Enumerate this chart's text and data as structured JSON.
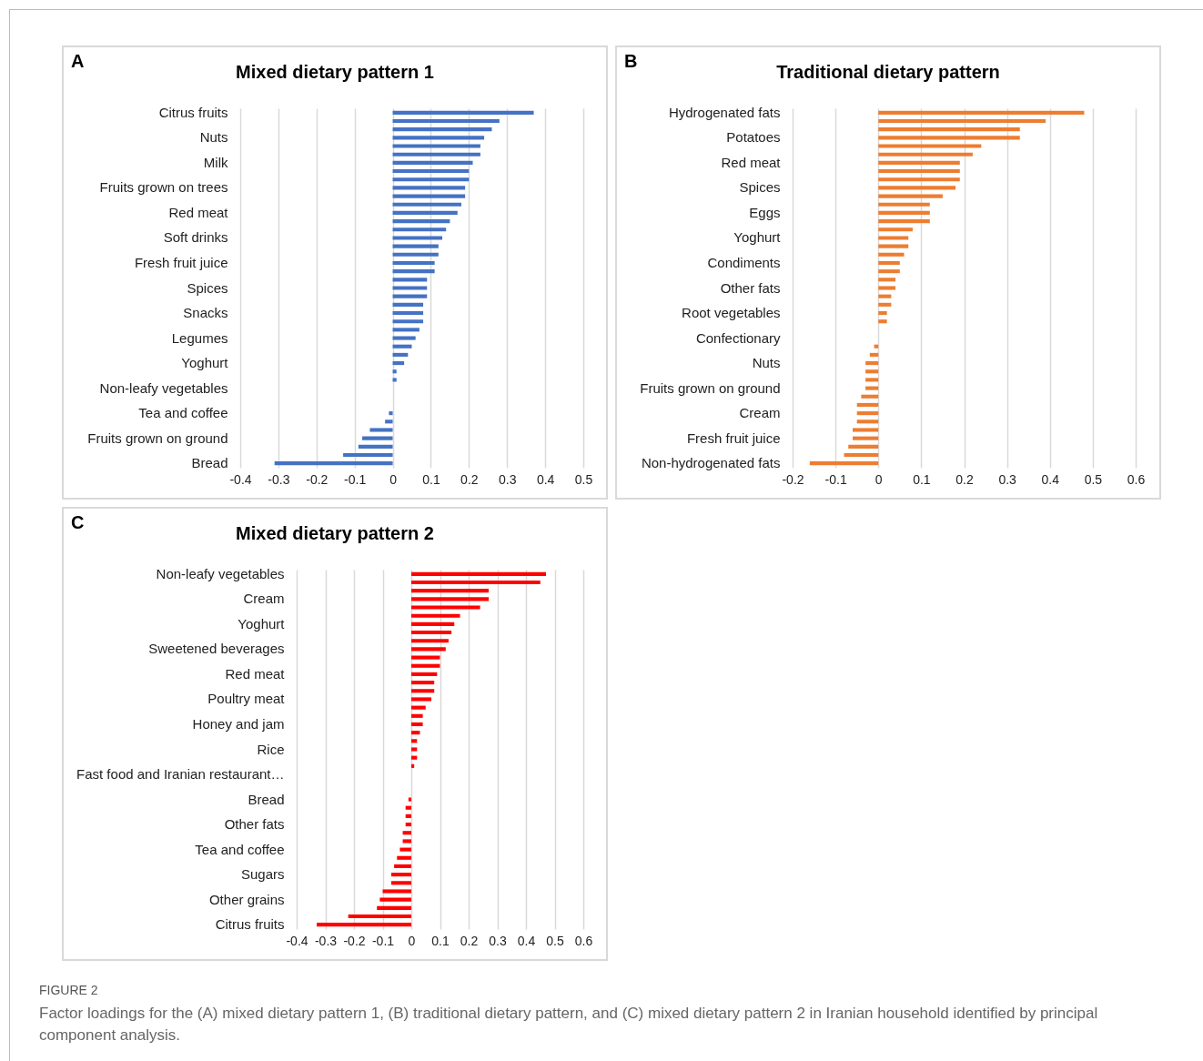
{
  "chart_data": [
    {
      "type": "bar",
      "orientation": "horizontal",
      "title": "Mixed dietary pattern 1",
      "annotations": [
        "A",
        "FIGURE 2",
        "Factor loadings for the (A) mixed dietary pattern 1, (B) traditional dietary pattern, and (C) mixed dietary pattern 2 in Iranian household identified by principal component analysis."
      ],
      "categories": [
        "Citrus fruits",
        null,
        null,
        "Nuts",
        null,
        null,
        "Milk",
        null,
        null,
        "Fruits grown on trees",
        null,
        null,
        "Red meat",
        null,
        null,
        "Soft drinks",
        null,
        null,
        "Fresh fruit juice",
        null,
        null,
        "Spices",
        null,
        null,
        "Snacks",
        null,
        null,
        "Legumes",
        null,
        null,
        "Yoghurt",
        null,
        null,
        "Non-leafy vegetables",
        null,
        null,
        "Tea and coffee",
        null,
        null,
        "Fruits grown on ground",
        null,
        null,
        "Bread"
      ],
      "values": [
        0.37,
        0.28,
        0.26,
        0.24,
        0.23,
        0.23,
        0.21,
        0.2,
        0.2,
        0.19,
        0.19,
        0.18,
        0.17,
        0.15,
        0.14,
        0.13,
        0.12,
        0.12,
        0.11,
        0.11,
        0.09,
        0.09,
        0.09,
        0.08,
        0.08,
        0.08,
        0.07,
        0.06,
        0.05,
        0.04,
        0.03,
        0.01,
        0.01,
        0,
        0,
        0,
        -0.01,
        -0.02,
        -0.06,
        -0.08,
        -0.09,
        -0.13,
        -0.31
      ],
      "color": "#4472c4",
      "xlim": [
        -0.4,
        0.5
      ],
      "xticks": [
        -0.4,
        -0.3,
        -0.2,
        -0.1,
        0,
        0.1,
        0.2,
        0.3,
        0.4,
        0.5
      ],
      "grid": "x"
    },
    {
      "type": "bar",
      "orientation": "horizontal",
      "title": "Traditional dietary pattern",
      "annotations": [
        "B"
      ],
      "categories": [
        "Hydrogenated fats",
        null,
        null,
        "Potatoes",
        null,
        null,
        "Red meat",
        null,
        null,
        "Spices",
        null,
        null,
        "Eggs",
        null,
        null,
        "Yoghurt",
        null,
        null,
        "Condiments",
        null,
        null,
        "Other fats",
        null,
        null,
        "Root vegetables",
        null,
        null,
        "Confectionary",
        null,
        null,
        "Nuts",
        null,
        null,
        "Fruits grown on ground",
        null,
        null,
        "Cream",
        null,
        null,
        "Fresh fruit juice",
        null,
        null,
        "Non-hydrogenated fats"
      ],
      "values": [
        0.48,
        0.39,
        0.33,
        0.33,
        0.24,
        0.22,
        0.19,
        0.19,
        0.19,
        0.18,
        0.15,
        0.12,
        0.12,
        0.12,
        0.08,
        0.07,
        0.07,
        0.06,
        0.05,
        0.05,
        0.04,
        0.04,
        0.03,
        0.03,
        0.02,
        0.02,
        0,
        0,
        -0.01,
        -0.02,
        -0.03,
        -0.03,
        -0.03,
        -0.03,
        -0.04,
        -0.05,
        -0.05,
        -0.05,
        -0.06,
        -0.06,
        -0.07,
        -0.08,
        -0.16
      ],
      "color": "#ed7d31",
      "xlim": [
        -0.2,
        0.6
      ],
      "xticks": [
        -0.2,
        -0.1,
        0,
        0.1,
        0.2,
        0.3,
        0.4,
        0.5,
        0.6
      ],
      "grid": "x"
    },
    {
      "type": "bar",
      "orientation": "horizontal",
      "title": "Mixed dietary pattern 2",
      "annotations": [
        "C"
      ],
      "categories": [
        "Non-leafy vegetables",
        null,
        null,
        "Cream",
        null,
        null,
        "Yoghurt",
        null,
        null,
        "Sweetened beverages",
        null,
        null,
        "Red meat",
        null,
        null,
        "Poultry meat",
        null,
        null,
        "Honey and jam",
        null,
        null,
        "Rice",
        null,
        null,
        "Fast food and Iranian restaurant…",
        null,
        null,
        "Bread",
        null,
        null,
        "Other fats",
        null,
        null,
        "Tea and coffee",
        null,
        null,
        "Sugars",
        null,
        null,
        "Other grains",
        null,
        null,
        "Citrus fruits"
      ],
      "values": [
        0.47,
        0.45,
        0.27,
        0.27,
        0.24,
        0.17,
        0.15,
        0.14,
        0.13,
        0.12,
        0.1,
        0.1,
        0.09,
        0.08,
        0.08,
        0.07,
        0.05,
        0.04,
        0.04,
        0.03,
        0.02,
        0.02,
        0.02,
        0.01,
        0,
        0,
        0,
        -0.01,
        -0.02,
        -0.02,
        -0.02,
        -0.03,
        -0.03,
        -0.04,
        -0.05,
        -0.06,
        -0.07,
        -0.07,
        -0.1,
        -0.11,
        -0.12,
        -0.22,
        -0.33
      ],
      "color": "#ff0000",
      "xlim": [
        -0.4,
        0.6
      ],
      "xticks": [
        -0.4,
        -0.3,
        -0.2,
        -0.1,
        0,
        0.1,
        0.2,
        0.3,
        0.4,
        0.5,
        0.6
      ],
      "grid": "x"
    }
  ]
}
